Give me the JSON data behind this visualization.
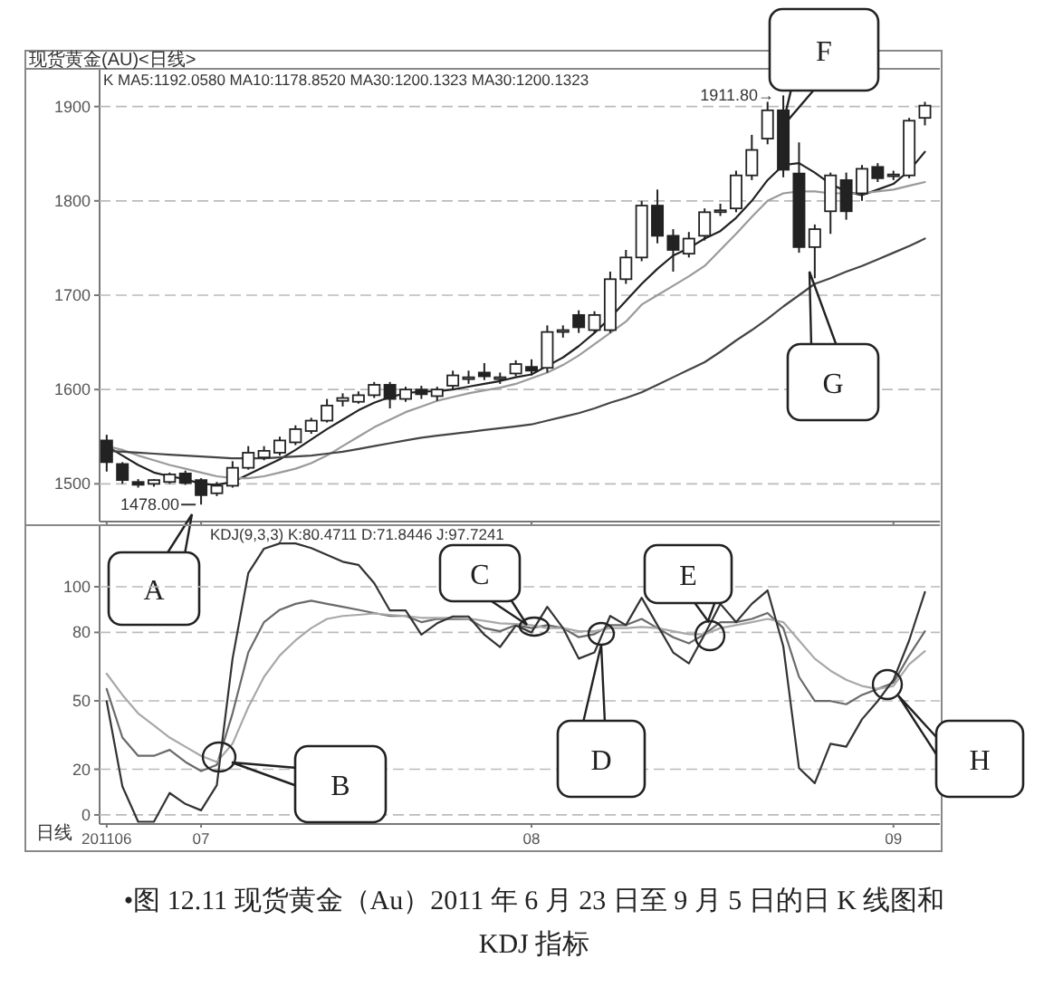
{
  "chart_data": [
    {
      "type": "candlestick",
      "title": "现货黄金(AU)<日线>",
      "tick_labels": "y",
      "grid": "y",
      "ylim": [
        1460,
        1940
      ],
      "yticks": [
        1500,
        1600,
        1700,
        1800,
        1900
      ],
      "categories": [
        "201106",
        null,
        null,
        null,
        null,
        null,
        "07",
        null,
        null,
        null,
        null,
        null,
        null,
        null,
        null,
        null,
        null,
        null,
        null,
        null,
        null,
        null,
        null,
        null,
        null,
        null,
        null,
        "08",
        null,
        null,
        null,
        null,
        null,
        null,
        null,
        null,
        null,
        null,
        null,
        null,
        null,
        null,
        null,
        null,
        null,
        null,
        null,
        null,
        null,
        null,
        "09",
        null,
        null
      ],
      "ohlc": [
        [
          1546,
          1552,
          1513,
          1523
        ],
        [
          1521,
          1523,
          1500,
          1504
        ],
        [
          1502,
          1505,
          1496,
          1499
        ],
        [
          1500,
          1505,
          1497,
          1504
        ],
        [
          1502,
          1512,
          1500,
          1510
        ],
        [
          1511,
          1514,
          1499,
          1501
        ],
        [
          1504,
          1506,
          1478,
          1488
        ],
        [
          1490,
          1502,
          1487,
          1498
        ],
        [
          1498,
          1524,
          1496,
          1517
        ],
        [
          1517,
          1540,
          1515,
          1533
        ],
        [
          1528,
          1540,
          1525,
          1535
        ],
        [
          1533,
          1550,
          1530,
          1546
        ],
        [
          1544,
          1562,
          1541,
          1558
        ],
        [
          1556,
          1570,
          1553,
          1567
        ],
        [
          1567,
          1590,
          1565,
          1583
        ],
        [
          1588,
          1596,
          1582,
          1591
        ],
        [
          1587,
          1598,
          1585,
          1594
        ],
        [
          1594,
          1608,
          1591,
          1605
        ],
        [
          1605,
          1608,
          1580,
          1590
        ],
        [
          1590,
          1603,
          1587,
          1600
        ],
        [
          1600,
          1604,
          1590,
          1595
        ],
        [
          1593,
          1603,
          1588,
          1600
        ],
        [
          1604,
          1620,
          1600,
          1615
        ],
        [
          1611,
          1620,
          1606,
          1613
        ],
        [
          1618,
          1628,
          1610,
          1614
        ],
        [
          1611,
          1618,
          1606,
          1613
        ],
        [
          1617,
          1631,
          1614,
          1627
        ],
        [
          1624,
          1632,
          1615,
          1620
        ],
        [
          1623,
          1668,
          1618,
          1661
        ],
        [
          1661,
          1668,
          1655,
          1663
        ],
        [
          1679,
          1684,
          1660,
          1666
        ],
        [
          1663,
          1683,
          1660,
          1679
        ],
        [
          1663,
          1725,
          1660,
          1717
        ],
        [
          1717,
          1748,
          1712,
          1740
        ],
        [
          1740,
          1800,
          1736,
          1795
        ],
        [
          1795,
          1812,
          1755,
          1763
        ],
        [
          1763,
          1770,
          1725,
          1748
        ],
        [
          1744,
          1767,
          1740,
          1760
        ],
        [
          1763,
          1792,
          1758,
          1788
        ],
        [
          1789,
          1797,
          1784,
          1790
        ],
        [
          1792,
          1832,
          1788,
          1827
        ],
        [
          1827,
          1870,
          1822,
          1854
        ],
        [
          1866,
          1905,
          1860,
          1896
        ],
        [
          1896,
          1911.8,
          1825,
          1833
        ],
        [
          1829,
          1862,
          1745,
          1751
        ],
        [
          1751,
          1775,
          1718,
          1770
        ],
        [
          1789,
          1830,
          1765,
          1827
        ],
        [
          1822,
          1830,
          1780,
          1789
        ],
        [
          1808,
          1838,
          1800,
          1834
        ],
        [
          1836,
          1840,
          1820,
          1824
        ],
        [
          1827,
          1832,
          1822,
          1828
        ],
        [
          1827,
          1888,
          1824,
          1885
        ],
        [
          1888,
          1905,
          1880,
          1901
        ]
      ],
      "series": [
        {
          "type": "line",
          "color": "#222222",
          "values": [
            1540,
            1530,
            1520,
            1512,
            1508,
            1505,
            1500,
            1499,
            1502,
            1510,
            1518,
            1526,
            1536,
            1547,
            1558,
            1568,
            1578,
            1586,
            1592,
            1596,
            1598,
            1598,
            1600,
            1603,
            1606,
            1609,
            1613,
            1616,
            1625,
            1634,
            1646,
            1660,
            1676,
            1694,
            1712,
            1728,
            1742,
            1750,
            1760,
            1768,
            1782,
            1800,
            1822,
            1838,
            1840,
            1830,
            1818,
            1810,
            1806,
            1812,
            1818,
            1832,
            1852
          ]
        },
        {
          "type": "line",
          "color": "#9a9a9a",
          "values": [
            1540,
            1536,
            1530,
            1525,
            1520,
            1516,
            1512,
            1508,
            1506,
            1506,
            1508,
            1512,
            1516,
            1522,
            1530,
            1540,
            1550,
            1560,
            1568,
            1576,
            1582,
            1588,
            1592,
            1596,
            1599,
            1602,
            1606,
            1612,
            1618,
            1626,
            1636,
            1648,
            1660,
            1672,
            1690,
            1700,
            1710,
            1720,
            1731,
            1748,
            1765,
            1783,
            1800,
            1808,
            1810,
            1810,
            1808,
            1808,
            1808,
            1810,
            1812,
            1816,
            1820
          ]
        },
        {
          "type": "line",
          "color": "#444444",
          "values": [
            1535,
            1534,
            1533,
            1532,
            1531,
            1530,
            1529,
            1528,
            1527,
            1527,
            1527,
            1528,
            1529,
            1530,
            1532,
            1534,
            1537,
            1540,
            1543,
            1546,
            1549,
            1551,
            1553,
            1555,
            1557,
            1559,
            1561,
            1563,
            1567,
            1571,
            1575,
            1580,
            1586,
            1591,
            1597,
            1605,
            1613,
            1621,
            1629,
            1640,
            1652,
            1663,
            1675,
            1688,
            1700,
            1712,
            1718,
            1725,
            1731,
            1738,
            1745,
            1752,
            1760
          ]
        }
      ],
      "annotations": [
        "K MA5:1192.0580 MA10:1178.8520 MA30:1200.1323 MA30:1200.1323",
        "1911.80→",
        "1478.00",
        "A",
        "F",
        "G"
      ]
    },
    {
      "type": "line",
      "grid": "y",
      "ylim": [
        -4,
        127
      ],
      "yticks": [
        0,
        20,
        50,
        80,
        100
      ],
      "categories": [
        "201106",
        null,
        null,
        null,
        null,
        null,
        "07",
        null,
        null,
        null,
        null,
        null,
        null,
        null,
        null,
        null,
        null,
        null,
        null,
        null,
        null,
        null,
        null,
        null,
        null,
        null,
        null,
        "08",
        null,
        null,
        null,
        null,
        null,
        null,
        null,
        null,
        null,
        null,
        null,
        null,
        null,
        null,
        null,
        null,
        null,
        null,
        null,
        null,
        null,
        null,
        "09",
        null,
        null
      ],
      "series": [
        {
          "color": "#6a6a6a",
          "values": [
            55.2,
            33.9,
            25.9,
            25.9,
            28.5,
            23.2,
            19.2,
            21.9,
            44.5,
            71.2,
            84.5,
            89.9,
            92.5,
            93.9,
            92.5,
            91.2,
            89.9,
            88.5,
            87.2,
            87.2,
            84.5,
            85.9,
            85.9,
            85.9,
            81.9,
            80.5,
            83.2,
            81.9,
            83.2,
            81.9,
            77.9,
            79.2,
            83.2,
            83.2,
            85.9,
            81.9,
            77.9,
            75.2,
            79.2,
            84.5,
            84.5,
            85.9,
            88.5,
            81.9,
            60.5,
            49.9,
            49.9,
            48.5,
            52.6,
            55.2,
            57.9,
            69.9,
            80.5
          ]
        },
        {
          "color": "#a8a8a8",
          "values": [
            61.9,
            52.6,
            44.5,
            39.2,
            33.9,
            29.9,
            25.9,
            23.2,
            31.2,
            47.2,
            60.5,
            69.9,
            76.5,
            81.9,
            85.9,
            87.2,
            87.7,
            88.3,
            87.7,
            87.2,
            86.4,
            86.4,
            86.4,
            86.1,
            85.1,
            84,
            83.7,
            83.2,
            81.9,
            81.9,
            80.5,
            80.5,
            81.9,
            81.9,
            82.4,
            81.9,
            80.5,
            79.2,
            79.2,
            81.9,
            83.2,
            84.5,
            85.9,
            84.5,
            76.5,
            68.5,
            63.2,
            59.2,
            56.5,
            55.2,
            56.5,
            66,
            71.8
          ]
        },
        {
          "color": "#333333",
          "values": [
            49.8,
            12.5,
            -3,
            -3,
            9.6,
            4.8,
            2,
            13,
            68.5,
            106,
            116.7,
            119,
            119,
            117,
            114,
            111,
            109.6,
            101.6,
            89.6,
            89.6,
            79,
            84,
            87,
            87,
            79,
            73.6,
            83,
            80,
            91.2,
            81.9,
            68.5,
            71.2,
            87.2,
            83.2,
            95.2,
            83.2,
            71.2,
            66.4,
            79.2,
            92.5,
            84.5,
            92.5,
            98.4,
            73.9,
            20.5,
            13.9,
            31.2,
            29.9,
            41.9,
            49.9,
            59.2,
            76.5,
            97.7
          ]
        }
      ],
      "annotations": [
        "KDJ(9,3,3) K:80.4711 D:71.8446 J:97.7241",
        "日线",
        "B",
        "C",
        "D",
        "E",
        "H",
        "•图 12.11 现货黄金（Au）2011 年 6 月 23 日至 9 月 5 日的日 K 线图和 KDJ 指标"
      ]
    }
  ]
}
